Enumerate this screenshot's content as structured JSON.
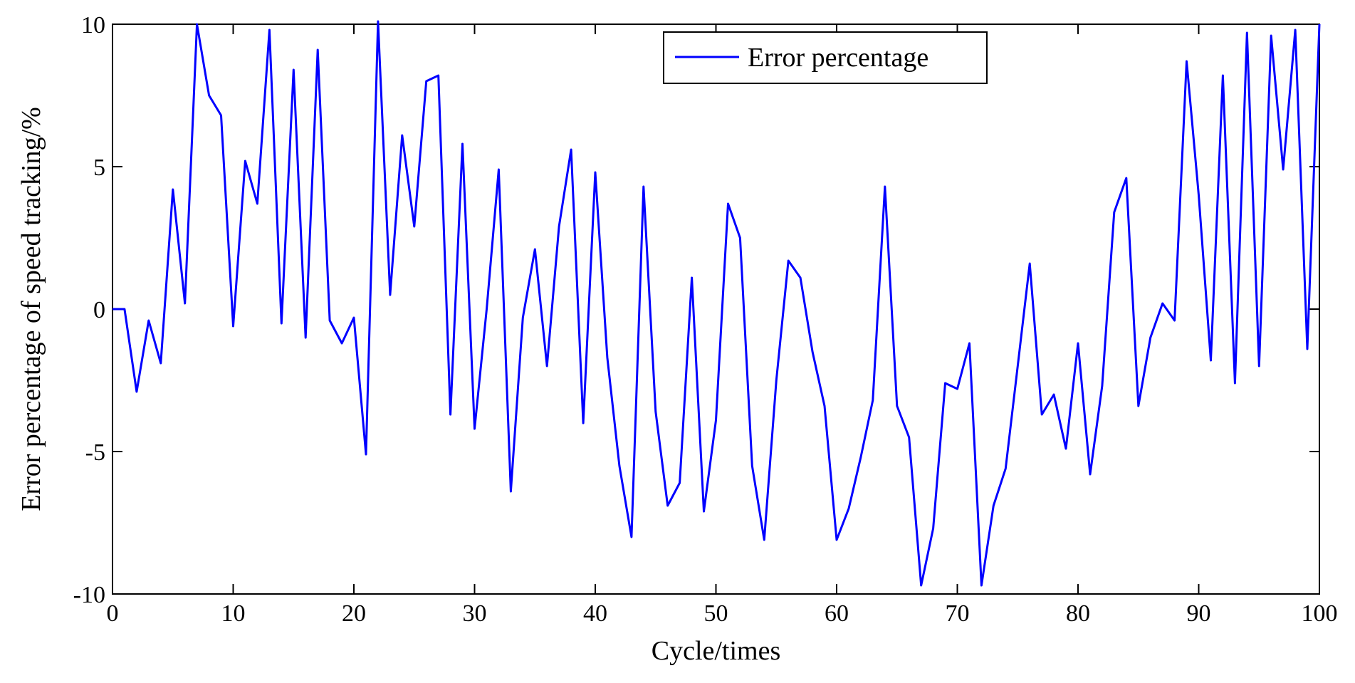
{
  "chart_data": {
    "type": "line",
    "title": "",
    "xlabel": "Cycle/times",
    "ylabel": "Error percentage of speed tracking/%",
    "xlim": [
      0,
      100
    ],
    "ylim": [
      -10,
      10
    ],
    "xticks": [
      0,
      10,
      20,
      30,
      40,
      50,
      60,
      70,
      80,
      90,
      100
    ],
    "yticks": [
      -10,
      -5,
      0,
      5,
      10
    ],
    "grid": false,
    "legend_position": "top-center",
    "series": [
      {
        "name": "Error percentage",
        "color": "#0000ff",
        "x": [
          0,
          1,
          2,
          3,
          4,
          5,
          6,
          7,
          8,
          9,
          10,
          11,
          12,
          13,
          14,
          15,
          16,
          17,
          18,
          19,
          20,
          21,
          22,
          23,
          24,
          25,
          26,
          27,
          28,
          29,
          30,
          31,
          32,
          33,
          34,
          35,
          36,
          37,
          38,
          39,
          40,
          41,
          42,
          43,
          44,
          45,
          46,
          47,
          48,
          49,
          50,
          51,
          52,
          53,
          54,
          55,
          56,
          57,
          58,
          59,
          60,
          61,
          62,
          63,
          64,
          65,
          66,
          67,
          68,
          69,
          70,
          71,
          72,
          73,
          74,
          75,
          76,
          77,
          78,
          79,
          80,
          81,
          82,
          83,
          84,
          85,
          86,
          87,
          88,
          89,
          90,
          91,
          92,
          93,
          94,
          95,
          96,
          97,
          98,
          99,
          100
        ],
        "y": [
          0,
          0,
          -2.9,
          -0.4,
          -1.9,
          4.2,
          0.2,
          10,
          7.5,
          6.8,
          -0.6,
          5.2,
          3.7,
          9.8,
          -0.5,
          8.4,
          -1.0,
          9.1,
          -0.4,
          -1.2,
          -0.3,
          -5.1,
          10.1,
          0.5,
          6.1,
          2.9,
          8.0,
          8.2,
          -3.7,
          5.8,
          -4.2,
          0,
          4.9,
          -6.4,
          -0.3,
          2.1,
          -2.0,
          2.9,
          5.6,
          -4.0,
          4.8,
          -1.7,
          -5.5,
          -8.0,
          4.3,
          -3.6,
          -6.9,
          -6.1,
          1.1,
          -7.1,
          -3.9,
          3.7,
          2.5,
          -5.5,
          -8.1,
          -2.5,
          1.7,
          1.1,
          -1.5,
          -3.4,
          -8.1,
          -7.0,
          -5.2,
          -3.2,
          4.3,
          -3.4,
          -4.5,
          -9.7,
          -7.7,
          -2.6,
          -2.8,
          -1.2,
          -9.7,
          -6.9,
          -5.6,
          -2.0,
          1.6,
          -3.7,
          -3.0,
          -4.9,
          -1.2,
          -5.8,
          -2.7,
          3.4,
          4.6,
          -3.4,
          -1.0,
          0.2,
          -0.4,
          8.7,
          4.0,
          -1.8,
          8.2,
          -2.6,
          9.7,
          -2.0,
          9.6,
          4.9,
          9.8,
          -1.4,
          10
        ]
      }
    ]
  }
}
